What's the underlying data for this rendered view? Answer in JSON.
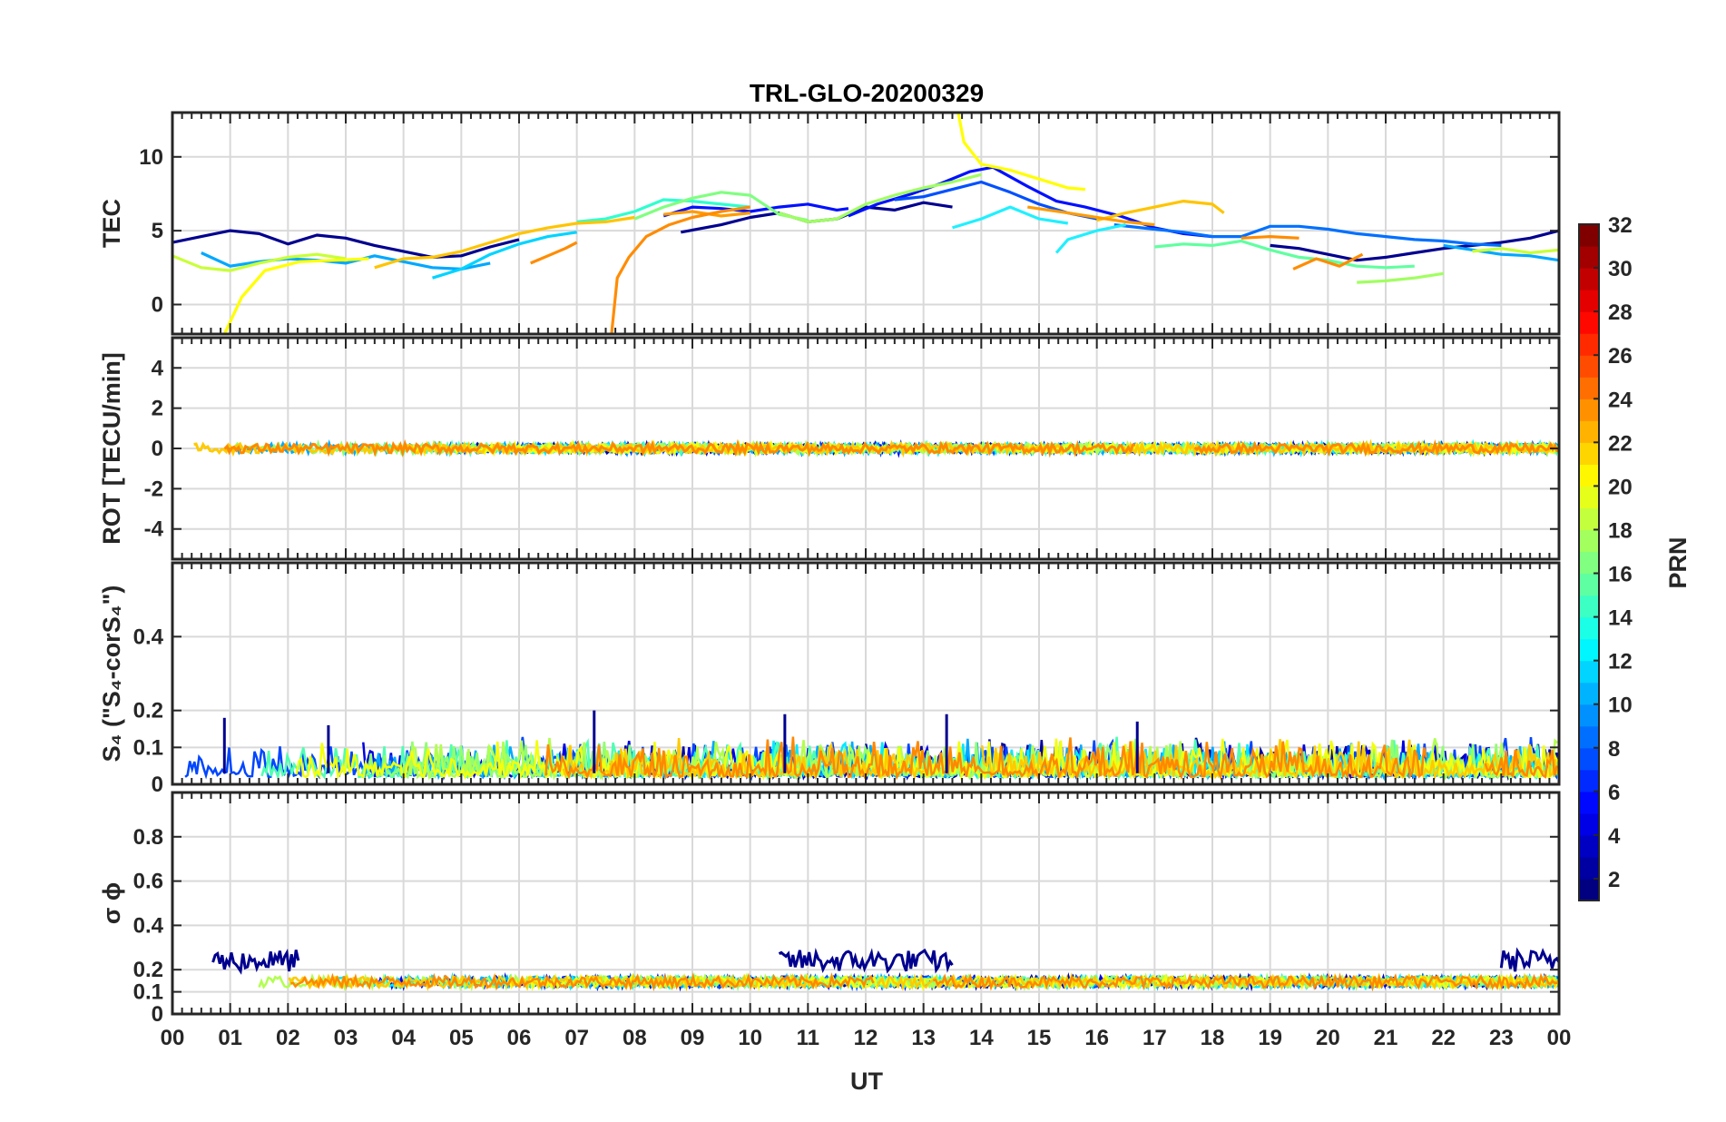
{
  "chart_data": {
    "type": "line",
    "title": "TRL-GLO-20200329",
    "xlabel": "UT",
    "x_ticks": [
      "00",
      "01",
      "02",
      "03",
      "04",
      "05",
      "06",
      "07",
      "08",
      "09",
      "10",
      "11",
      "12",
      "13",
      "14",
      "15",
      "16",
      "17",
      "18",
      "19",
      "20",
      "21",
      "22",
      "23",
      "00"
    ],
    "xlim": [
      0,
      24
    ],
    "panels": [
      {
        "id": "tec",
        "ylabel": "TEC",
        "ylim": [
          -2,
          13
        ],
        "yticks": [
          0,
          5,
          10
        ],
        "ytick_labels": [
          "0",
          "5",
          "10"
        ],
        "grid": true,
        "series": [
          {
            "name": "PRN 2",
            "prn": 2,
            "color": "#00008f",
            "x": [
              0,
              0.5,
              1,
              1.5,
              2,
              2.5,
              3,
              3.5,
              4,
              4.5,
              5,
              5.5,
              6
            ],
            "y": [
              4.2,
              4.6,
              5.0,
              4.8,
              4.1,
              4.7,
              4.5,
              4.0,
              3.6,
              3.2,
              3.3,
              3.9,
              4.4
            ]
          },
          {
            "name": "PRN 2b",
            "prn": 2,
            "color": "#00008f",
            "x": [
              8.8,
              9.5,
              10,
              10.5,
              11,
              11.5,
              12,
              12.5,
              13,
              13.5
            ],
            "y": [
              4.9,
              5.4,
              5.9,
              6.2,
              5.6,
              5.8,
              6.6,
              6.4,
              6.9,
              6.6
            ]
          },
          {
            "name": "PRN 2c",
            "prn": 2,
            "color": "#00008f",
            "x": [
              19,
              19.5,
              20,
              20.5,
              21,
              21.5,
              22,
              22.5,
              23,
              23.5,
              24
            ],
            "y": [
              4.0,
              3.8,
              3.4,
              3.0,
              3.2,
              3.5,
              3.8,
              4.0,
              4.2,
              4.5,
              5.0
            ]
          },
          {
            "name": "PRN 4",
            "prn": 4,
            "color": "#0010ff",
            "x": [
              8.5,
              9,
              9.5,
              10,
              10.5,
              11,
              11.5,
              11.7
            ],
            "y": [
              6.0,
              6.6,
              6.5,
              6.3,
              6.6,
              6.8,
              6.4,
              6.5
            ]
          },
          {
            "name": "PRN 4b",
            "prn": 4,
            "color": "#0010ff",
            "x": [
              11.7,
              12.2,
              12.8,
              13.3,
              13.8,
              14.2,
              14.8,
              15.3,
              15.8,
              16.4,
              17,
              17.5,
              18
            ],
            "y": [
              6.0,
              6.8,
              7.5,
              8.2,
              9.0,
              9.3,
              8.0,
              7.0,
              6.6,
              6.0,
              5.2,
              4.8,
              4.6
            ]
          },
          {
            "name": "PRN 6",
            "prn": 6,
            "color": "#0050ff",
            "x": [
              12.5,
              13,
              13.5,
              14,
              14.5,
              15,
              15.5,
              16
            ],
            "y": [
              7.1,
              7.3,
              7.8,
              8.3,
              7.6,
              6.8,
              6.2,
              5.8
            ]
          },
          {
            "name": "PRN 7",
            "prn": 7,
            "color": "#0070ff",
            "x": [
              16.3,
              17,
              17.5,
              18,
              18.5,
              19,
              19.5,
              20,
              20.5,
              21,
              21.5,
              22,
              22.5,
              23
            ],
            "y": [
              5.4,
              5.1,
              4.9,
              4.6,
              4.6,
              5.3,
              5.3,
              5.1,
              4.8,
              4.6,
              4.4,
              4.3,
              4.1,
              4.0
            ]
          },
          {
            "name": "PRN 10",
            "prn": 10,
            "color": "#00a8ff",
            "x": [
              0.5,
              1,
              1.5,
              2,
              2.5,
              3,
              3.5,
              4,
              4.5,
              5,
              5.5
            ],
            "y": [
              3.5,
              2.6,
              2.9,
              3.1,
              3.0,
              2.8,
              3.3,
              2.9,
              2.5,
              2.4,
              2.8
            ]
          },
          {
            "name": "PRN 10b",
            "prn": 10,
            "color": "#00a8ff",
            "x": [
              22,
              22.5,
              23,
              23.5,
              24
            ],
            "y": [
              4.0,
              3.7,
              3.4,
              3.3,
              3.0
            ]
          },
          {
            "name": "PRN 12",
            "prn": 12,
            "color": "#00d4ff",
            "x": [
              4.5,
              5,
              5.5,
              6,
              6.5,
              7
            ],
            "y": [
              1.8,
              2.4,
              3.4,
              4.1,
              4.6,
              4.9
            ]
          },
          {
            "name": "PRN 12b",
            "prn": 12,
            "color": "#20f0ff",
            "x": [
              13.5,
              14,
              14.5,
              15,
              15.5
            ],
            "y": [
              5.2,
              5.8,
              6.6,
              5.8,
              5.5
            ]
          },
          {
            "name": "PRN 12c",
            "prn": 12,
            "color": "#20f0ff",
            "x": [
              15.3,
              15.5,
              16,
              16.5
            ],
            "y": [
              3.5,
              4.4,
              5.0,
              5.4
            ]
          },
          {
            "name": "PRN 14",
            "prn": 14,
            "color": "#2fffcf",
            "x": [
              7,
              7.5,
              8,
              8.5,
              9,
              9.5,
              10
            ],
            "y": [
              5.6,
              5.8,
              6.3,
              7.1,
              7.0,
              6.8,
              6.6
            ]
          },
          {
            "name": "PRN 15",
            "prn": 15,
            "color": "#60ffa0",
            "x": [
              17,
              17.5,
              18,
              18.5,
              19,
              19.5,
              20,
              20.5,
              21,
              21.5
            ],
            "y": [
              3.9,
              4.1,
              4.0,
              4.3,
              3.7,
              3.2,
              3.0,
              2.6,
              2.5,
              2.6
            ]
          },
          {
            "name": "PRN 16",
            "prn": 16,
            "color": "#80ff80",
            "x": [
              8,
              8.5,
              9,
              9.5,
              10,
              10.5,
              11
            ],
            "y": [
              5.8,
              6.6,
              7.2,
              7.6,
              7.4,
              6.1,
              5.7
            ]
          },
          {
            "name": "PRN 17",
            "prn": 17,
            "color": "#a0ff60",
            "x": [
              10.5,
              11,
              11.5,
              12,
              12.5,
              13,
              13.5,
              14
            ],
            "y": [
              6.2,
              5.6,
              5.8,
              6.8,
              7.4,
              7.9,
              8.3,
              8.8
            ]
          },
          {
            "name": "PRN 17b",
            "prn": 17,
            "color": "#a0ff60",
            "x": [
              20.5,
              21,
              21.5,
              22
            ],
            "y": [
              1.5,
              1.6,
              1.8,
              2.1
            ]
          },
          {
            "name": "PRN 18",
            "prn": 18,
            "color": "#c8ff37",
            "x": [
              0,
              0.5,
              1,
              1.5,
              2,
              2.5,
              3
            ],
            "y": [
              3.3,
              2.5,
              2.3,
              2.8,
              3.2,
              3.4,
              3.1
            ]
          },
          {
            "name": "PRN 18b",
            "prn": 18,
            "color": "#c8ff37",
            "x": [
              22.5,
              23,
              23.5,
              24
            ],
            "y": [
              3.6,
              3.8,
              3.5,
              3.7
            ]
          },
          {
            "name": "PRN 20",
            "prn": 20,
            "color": "#ffff00",
            "x": [
              0.9,
              1.2,
              1.6,
              2.2,
              2.8,
              3.4
            ],
            "y": [
              -2,
              0.5,
              2.3,
              2.9,
              3.0,
              3.1
            ]
          },
          {
            "name": "PRN 20b",
            "prn": 20,
            "color": "#ffff00",
            "x": [
              13.6,
              13.7,
              13.8,
              14,
              14.5,
              15,
              15.5,
              15.8
            ],
            "y": [
              13,
              11,
              10.5,
              9.5,
              9.1,
              8.5,
              7.9,
              7.8
            ]
          },
          {
            "name": "PRN 22",
            "prn": 22,
            "color": "#ffc400",
            "x": [
              3.5,
              4,
              4.5,
              5,
              5.5,
              6,
              6.5,
              7,
              7.5,
              8
            ],
            "y": [
              2.5,
              3.1,
              3.2,
              3.6,
              4.2,
              4.8,
              5.2,
              5.5,
              5.6,
              5.9
            ]
          },
          {
            "name": "PRN 22b",
            "prn": 22,
            "color": "#ffc400",
            "x": [
              16,
              16.5,
              17,
              17.5,
              18,
              18.2
            ],
            "y": [
              5.7,
              6.2,
              6.6,
              7.0,
              6.8,
              6.2
            ]
          },
          {
            "name": "PRN 23",
            "prn": 23,
            "color": "#ff9c00",
            "x": [
              8.5,
              9,
              9.5,
              10
            ],
            "y": [
              6.1,
              6.3,
              6.0,
              6.2
            ]
          },
          {
            "name": "PRN 23b",
            "prn": 23,
            "color": "#ff9c00",
            "x": [
              14.8,
              15.5,
              16,
              16.5,
              17
            ],
            "y": [
              6.6,
              6.2,
              5.9,
              5.6,
              5.4
            ]
          },
          {
            "name": "PRN 24",
            "prn": 24,
            "color": "#ff8c00",
            "x": [
              6.2,
              6.5,
              6.8,
              7
            ],
            "y": [
              2.8,
              3.3,
              3.8,
              4.2
            ]
          },
          {
            "name": "PRN 24b",
            "prn": 24,
            "color": "#ff8c00",
            "x": [
              7.6,
              7.7,
              7.9,
              8.2,
              8.6,
              9,
              9.5,
              10
            ],
            "y": [
              -2,
              1.8,
              3.2,
              4.6,
              5.4,
              5.9,
              6.3,
              6.6
            ]
          },
          {
            "name": "PRN 24c",
            "prn": 24,
            "color": "#ff8c00",
            "x": [
              18.5,
              19,
              19.5
            ],
            "y": [
              4.5,
              4.6,
              4.5
            ]
          },
          {
            "name": "PRN 24d",
            "prn": 24,
            "color": "#ff8c00",
            "x": [
              19.4,
              19.8,
              20.2,
              20.6
            ],
            "y": [
              2.4,
              3.1,
              2.6,
              3.4
            ]
          }
        ]
      },
      {
        "id": "rot",
        "ylabel": "ROT [TECU/min]",
        "ylim": [
          -5.5,
          5.5
        ],
        "yticks": [
          -4,
          -2,
          0,
          2,
          4
        ],
        "ytick_labels": [
          "-4",
          "-2",
          "0",
          "2",
          "4"
        ],
        "grid": true,
        "series_note": "ROT values stay within about ±0.3 TECU/min for all PRNs throughout the day"
      },
      {
        "id": "s4",
        "ylabel": "S₄ (\"S₄-corS₄\")",
        "ylim": [
          0,
          0.6
        ],
        "yticks": [
          0,
          0.1,
          0.2,
          0.4
        ],
        "ytick_labels": [
          "0",
          "0.1",
          "0.2",
          "0.4"
        ],
        "grid": true,
        "series_note": "S4 mostly 0–0.1 with peaks up to ~0.2 near 01, 07.3, 10.6, 13.4 UT"
      },
      {
        "id": "sigma_phi",
        "ylabel": "σ ϕ",
        "ylim": [
          0,
          1
        ],
        "yticks": [
          0,
          0.1,
          0.2,
          0.4,
          0.6,
          0.8
        ],
        "ytick_labels": [
          "0",
          "0.1",
          "0.2",
          "0.4",
          "0.6",
          "0.8"
        ],
        "grid": true,
        "series_note": "σφ baseline ~0.13–0.18; PRN 2 elevated ~0.2–0.33 during 00.7–02.2, 10.5–13.5 and 23–24 UT"
      }
    ],
    "colorbar": {
      "label": "PRN",
      "range": [
        1,
        32
      ],
      "ticks": [
        "2",
        "4",
        "6",
        "8",
        "10",
        "12",
        "14",
        "16",
        "18",
        "20",
        "22",
        "24",
        "26",
        "28",
        "30",
        "32"
      ],
      "colormap": "jet"
    }
  }
}
